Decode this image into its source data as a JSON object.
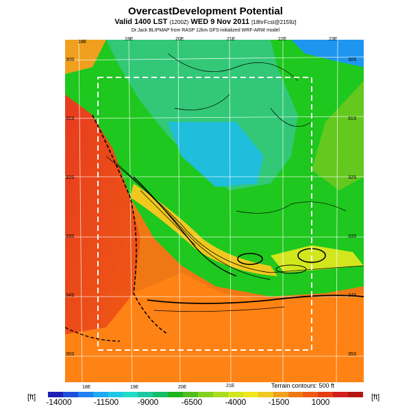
{
  "header": {
    "title": "OvercastDevelopment Potential",
    "valid_main": "Valid 1400 LST",
    "valid_code": "(1200Z)",
    "valid_date": "WED 9 Nov 2011",
    "forecast_tag": "[18hrFcst@2159z]",
    "model_line": "Dr.Jack BLIPMAP from RASP 12km GFS-initialized WRF-ARW model"
  },
  "map": {
    "top_lon_labels": [
      "18E",
      "19E",
      "20E",
      "21E",
      "22E",
      "23E"
    ],
    "bottom_lon_labels": [
      "18E",
      "19E",
      "20E",
      "21E"
    ],
    "left_lat_labels": [
      "30S",
      "31S",
      "32S",
      "33S",
      "34S",
      "35S"
    ],
    "right_lat_labels": [
      "30S",
      "31S",
      "32S",
      "33S",
      "34S",
      "35S"
    ],
    "terrain_note": "Terrain contours: 500 ft",
    "overlay": "dashed white rectangle marking inner domain",
    "field_colors": {
      "ocean_west": "#f03a1e",
      "interior_low": "#1ec81e",
      "high_ground": "#10b4c8",
      "land_south": "#ff7800"
    }
  },
  "colorbar": {
    "unit_left": "[ft]",
    "unit_right": "[ft]",
    "labels": [
      "-14000",
      "-11500",
      "-9000",
      "-6500",
      "-4000",
      "-1500",
      "1000"
    ],
    "colors": [
      "#1e1eb4",
      "#1e50dc",
      "#1e82f0",
      "#1eaaf0",
      "#1ec8e6",
      "#1edcc8",
      "#1ec8a0",
      "#14be64",
      "#1eb41e",
      "#50be1e",
      "#82d21e",
      "#aadc1e",
      "#d2e61e",
      "#f0e61e",
      "#f0c81e",
      "#f0a01e",
      "#f07814",
      "#f05a14",
      "#e63c14",
      "#d21e1e",
      "#b41414"
    ]
  }
}
